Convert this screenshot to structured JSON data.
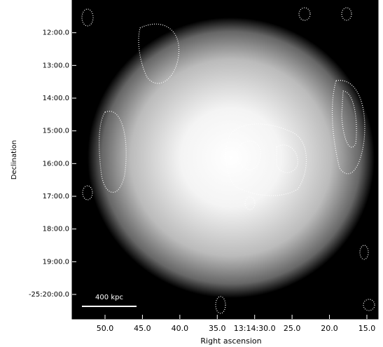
{
  "chart_data": {
    "type": "image",
    "xlabel": "Right ascension",
    "ylabel": "Declination",
    "xlim": [
      54.4,
      13.5
    ],
    "ylim": [
      20.75,
      11.0
    ],
    "xticks": [
      {
        "value": 50,
        "label": "50.0"
      },
      {
        "value": 45,
        "label": "45.0"
      },
      {
        "value": 40,
        "label": "40.0"
      },
      {
        "value": 35,
        "label": "35.0"
      },
      {
        "value": 30,
        "label": "13:14:30.0"
      },
      {
        "value": 25,
        "label": "25.0"
      },
      {
        "value": 20,
        "label": "20.0"
      },
      {
        "value": 15,
        "label": "15.0"
      }
    ],
    "yticks": [
      {
        "value": 12,
        "label": "12:00.0"
      },
      {
        "value": 13,
        "label": "13:00.0"
      },
      {
        "value": 14,
        "label": "14:00.0"
      },
      {
        "value": 15,
        "label": "15:00.0"
      },
      {
        "value": 16,
        "label": "16:00.0"
      },
      {
        "value": 17,
        "label": "17:00.0"
      },
      {
        "value": 18,
        "label": "18:00.0"
      },
      {
        "value": 19,
        "label": "19:00.0"
      },
      {
        "value": 20,
        "label": "-25:20:00.0"
      }
    ],
    "scale_bar": "400 kpc"
  }
}
